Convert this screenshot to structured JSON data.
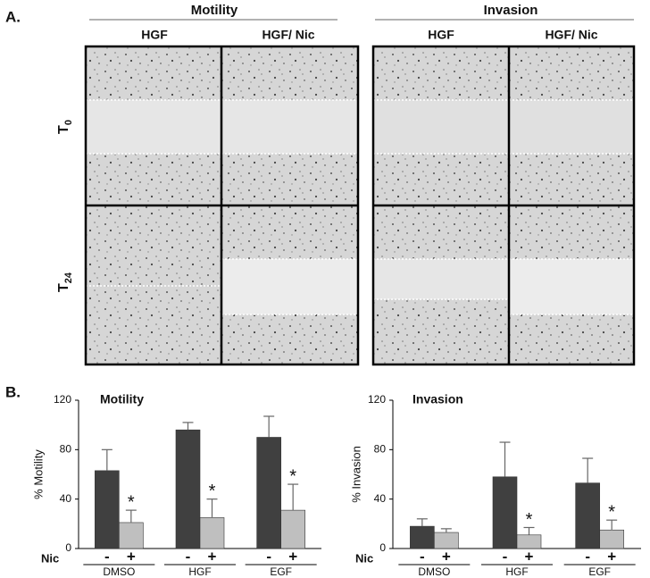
{
  "panel_a": {
    "label": "A.",
    "groups": [
      {
        "title": "Motility",
        "columns": [
          "HGF",
          "HGF/ Nic"
        ]
      },
      {
        "title": "Invasion",
        "columns": [
          "HGF",
          "HGF/ Nic"
        ]
      }
    ],
    "rows": [
      {
        "label": "T",
        "subscript": "0"
      },
      {
        "label": "T",
        "subscript": "24"
      }
    ]
  },
  "panel_b": {
    "label": "B."
  },
  "chart_data": [
    {
      "type": "bar",
      "title": "Motility",
      "y_label": "% Motility",
      "x_prefix": "Nic",
      "categories": [
        "DMSO",
        "HGF",
        "EGF"
      ],
      "series": [
        {
          "name": "-",
          "color": "#404040",
          "values": [
            63,
            96,
            90
          ],
          "errors": [
            17,
            6,
            17
          ]
        },
        {
          "name": "+",
          "color": "#bfbfbf",
          "values": [
            21,
            25,
            31
          ],
          "errors": [
            10,
            15,
            21
          ]
        }
      ],
      "annotations": [
        {
          "text": "*",
          "series": 1,
          "category": 0
        },
        {
          "text": "*",
          "series": 1,
          "category": 1
        },
        {
          "text": "*",
          "series": 1,
          "category": 2
        }
      ],
      "ylim": [
        0,
        120
      ],
      "yticks": [
        0,
        40,
        80,
        120
      ]
    },
    {
      "type": "bar",
      "title": "Invasion",
      "y_label": "% Invasion",
      "x_prefix": "Nic",
      "categories": [
        "DMSO",
        "HGF",
        "EGF"
      ],
      "series": [
        {
          "name": "-",
          "color": "#404040",
          "values": [
            18,
            58,
            53
          ],
          "errors": [
            6,
            28,
            20
          ]
        },
        {
          "name": "+",
          "color": "#bfbfbf",
          "values": [
            13,
            11,
            15
          ],
          "errors": [
            3,
            6,
            8
          ]
        }
      ],
      "annotations": [
        {
          "text": "*",
          "series": 1,
          "category": 1
        },
        {
          "text": "*",
          "series": 1,
          "category": 2
        }
      ],
      "ylim": [
        0,
        120
      ],
      "yticks": [
        0,
        40,
        80,
        120
      ]
    }
  ]
}
